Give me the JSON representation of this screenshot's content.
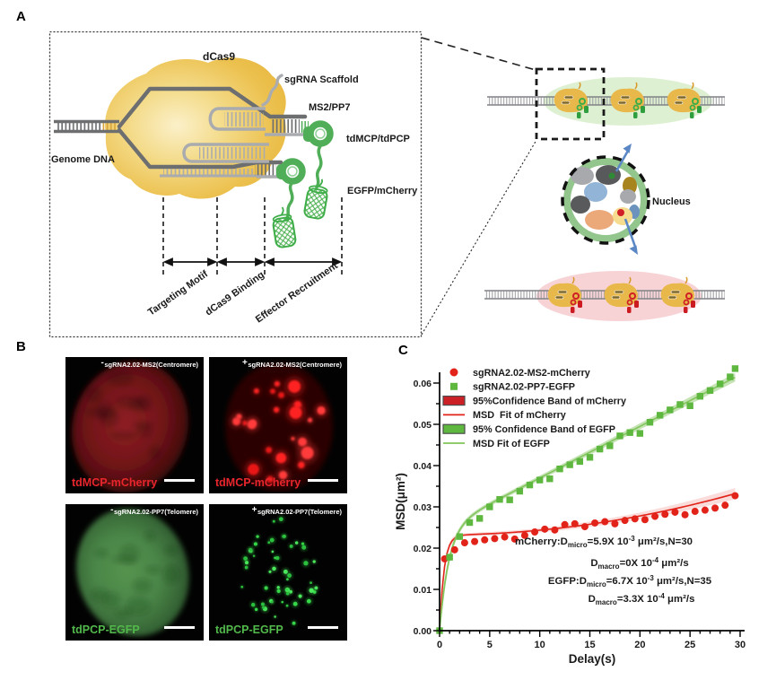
{
  "figure": {
    "panel_a_label": "A",
    "panel_b_label": "B",
    "panel_c_label": "C"
  },
  "panel_a": {
    "labels": {
      "dcas9": "dCas9",
      "sgrna_scaffold": "sgRNA Scaffold",
      "ms2_pp7": "MS2/PP7",
      "tdmcp_tdpcp": "tdMCP/tdPCP",
      "egfp_mcherry": "EGFP/mCherry",
      "genome_dna": "Genome DNA",
      "targeting_motif": "Targeting Motif",
      "dcas9_binding": "dCas9 Binding",
      "effector_recruitment": "Effector Recruitment",
      "nucleus": "Nucleus"
    }
  },
  "panel_b": {
    "tiles": [
      {
        "sign": "-",
        "label": "sgRNA2.02-MS2(Centromere)",
        "tag": "tdMCP-mCherry",
        "tag_color": "#e8262d",
        "type": "diffuse-red"
      },
      {
        "sign": "+",
        "label": "sgRNA2.02-MS2(Centromere)",
        "tag": "tdMCP-mCherry",
        "tag_color": "#e8262d",
        "type": "puncta-red"
      },
      {
        "sign": "-",
        "label": "sgRNA2.02-PP7(Telomere)",
        "tag": "tdPCP-EGFP",
        "tag_color": "#52b94b",
        "type": "diffuse-green"
      },
      {
        "sign": "+",
        "label": "sgRNA2.02-PP7(Telomere)",
        "tag": "tdPCP-EGFP",
        "tag_color": "#52b94b",
        "type": "puncta-green"
      }
    ]
  },
  "chart_data": {
    "type": "scatter",
    "title": "",
    "xlabel": "Delay(s)",
    "ylabel": "MSD(μm²)",
    "xlim": [
      0,
      30
    ],
    "ylim": [
      0,
      0.062
    ],
    "x_ticks": [
      0,
      5,
      10,
      15,
      20,
      25,
      30
    ],
    "y_ticks": [
      0,
      0.01,
      0.02,
      0.03,
      0.04,
      0.05,
      0.06
    ],
    "grid": false,
    "legend_position": "top-left",
    "legend": [
      {
        "swatch": "circle-red",
        "label": "sgRNA2.02-MS2-mCherry"
      },
      {
        "swatch": "square-green",
        "label": "sgRNA2.02-PP7-EGFP"
      },
      {
        "swatch": "band-red",
        "label": "95%Confidence Band of mCherry"
      },
      {
        "swatch": "line-red",
        "label": "MSD  Fit of mCherry"
      },
      {
        "swatch": "band-green",
        "label": "95% Confidence Band of EGFP"
      },
      {
        "swatch": "line-green",
        "label": "MSD Fit of EGFP"
      }
    ],
    "series": [
      {
        "name": "sgRNA2.02-MS2-mCherry",
        "marker": "circle",
        "color": "#e2231a",
        "x": [
          0.5,
          1.5,
          2.5,
          3.5,
          4.5,
          5.5,
          6.5,
          7.5,
          8.5,
          9.5,
          10.5,
          11.5,
          12.5,
          13.5,
          14.5,
          15.5,
          16.5,
          17.5,
          18.5,
          19.5,
          20.5,
          21.5,
          22.5,
          23.5,
          24.5,
          25.5,
          26.5,
          27.5,
          28.5,
          29.5
        ],
        "y": [
          0.0174,
          0.0196,
          0.0213,
          0.0216,
          0.022,
          0.0223,
          0.0227,
          0.0222,
          0.0231,
          0.0239,
          0.0246,
          0.0244,
          0.0257,
          0.0259,
          0.0252,
          0.0261,
          0.0264,
          0.0259,
          0.0267,
          0.0271,
          0.0269,
          0.0277,
          0.0282,
          0.0287,
          0.0281,
          0.0289,
          0.0292,
          0.0297,
          0.0304,
          0.0327
        ]
      },
      {
        "name": "sgRNA2.02-PP7-EGFP",
        "marker": "square",
        "color": "#5eb73f",
        "x": [
          0,
          1,
          2,
          3,
          4,
          5,
          6,
          7,
          8,
          9,
          10,
          11,
          12,
          13,
          14,
          15,
          16,
          17,
          18,
          19,
          20,
          21,
          22,
          23,
          24,
          25,
          26,
          27,
          28,
          29,
          29.5
        ],
        "y": [
          0.0,
          0.0178,
          0.0228,
          0.0262,
          0.0272,
          0.03,
          0.0318,
          0.0317,
          0.0338,
          0.0353,
          0.0365,
          0.0368,
          0.0392,
          0.0402,
          0.041,
          0.042,
          0.044,
          0.0448,
          0.0472,
          0.048,
          0.0478,
          0.0505,
          0.0522,
          0.0535,
          0.0548,
          0.0545,
          0.0568,
          0.0582,
          0.0598,
          0.0615,
          0.0635
        ]
      }
    ],
    "fits": [
      {
        "name": "MSD Fit of mCherry",
        "color": "#e2231a",
        "band_color": "#e2231a",
        "band_opacity": 0.16,
        "plateau": 0.0232,
        "tau": 0.45,
        "slope": 0,
        "quad": 1.15e-05,
        "band": {
          "min": 0.0004,
          "amp": 0.0022,
          "tau": 0.6,
          "quad": 1.1e-06
        }
      },
      {
        "name": "MSD Fit of EGFP",
        "color": "#82c55d",
        "band_color": "#8bc86a",
        "band_opacity": 0.5,
        "plateau": 0.0245,
        "tau": 0.9,
        "slope": 0.00125,
        "quad": 0,
        "band": {
          "min": 0.0005,
          "amp": 0.0022,
          "tau": 0.8,
          "quad": 6e-07
        }
      }
    ],
    "annotations": [
      "mCherry:D_{micro}=5.9X 10^{-3} μm²/s,N=30",
      "D_{macro}=0X 10^{-4} μm²/s",
      "EGFP:D_{micro}=6.7X 10^{-3} μm²/s,N=35",
      "D_{macro}=3.3X 10^{-4} μm²/s"
    ]
  }
}
